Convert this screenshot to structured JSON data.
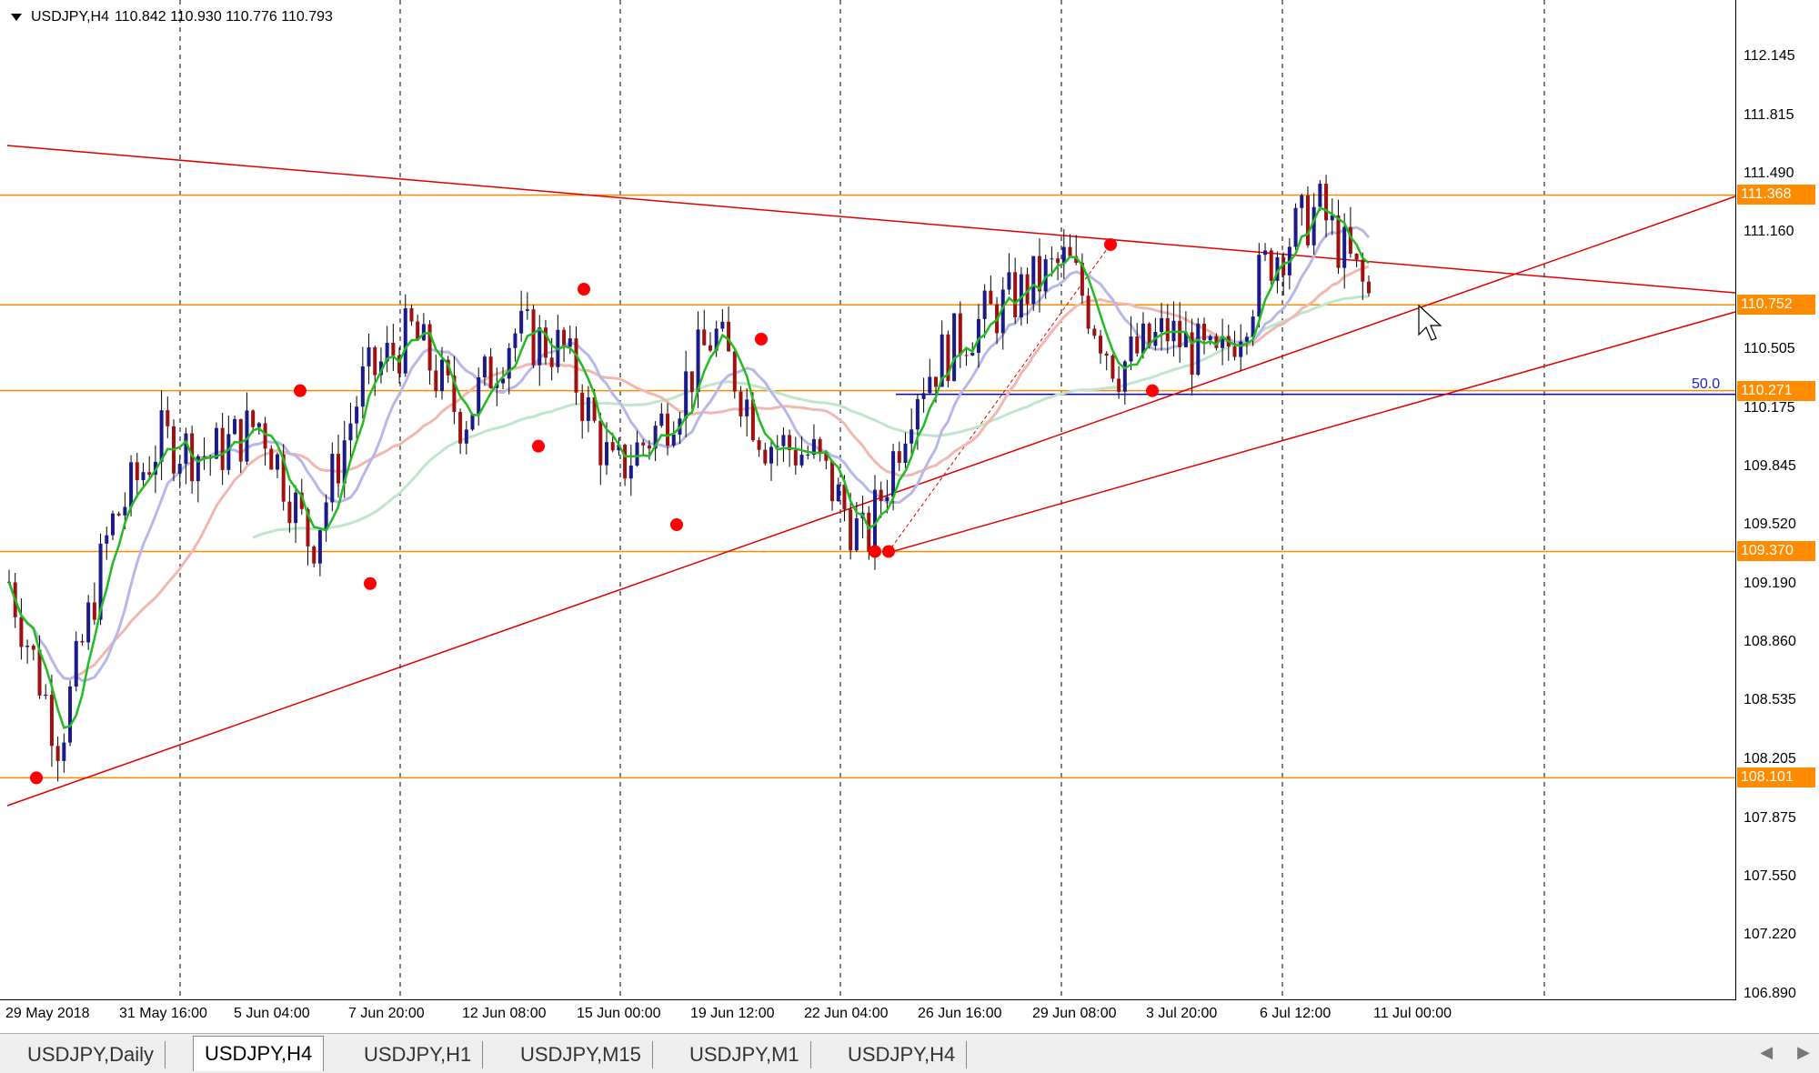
{
  "chart_header": {
    "symbol": "USDJPY,H4",
    "ohlc": "110.842 110.930 110.776 110.793"
  },
  "price_axis": {
    "ticks": [
      "112.145",
      "111.815",
      "111.490",
      "111.160",
      "110.505",
      "110.175",
      "109.845",
      "109.520",
      "109.190",
      "108.860",
      "108.535",
      "108.205",
      "107.875",
      "107.550",
      "107.220",
      "106.890"
    ],
    "horizontal_levels": [
      "111.368",
      "110.752",
      "110.271",
      "109.370",
      "108.101"
    ]
  },
  "time_axis": {
    "labels": [
      "29 May 2018",
      "31 May 16:00",
      "5 Jun 04:00",
      "7 Jun 20:00",
      "12 Jun 08:00",
      "15 Jun 00:00",
      "19 Jun 12:00",
      "22 Jun 04:00",
      "26 Jun 16:00",
      "29 Jun 08:00",
      "3 Jul 20:00",
      "6 Jul 12:00",
      "11 Jul 00:00"
    ]
  },
  "fib_label": "50.0",
  "tabs": [
    "USDJPY,Daily",
    "USDJPY,H4",
    "USDJPY,H1",
    "USDJPY,M15",
    "USDJPY,M1",
    "USDJPY,H4"
  ],
  "active_tab_index": 1,
  "colors": {
    "bull_candle": "#1a1a8a",
    "bear_candle": "#a01010",
    "level_line": "#ff8c00",
    "level_label_bg": "#ff8c00",
    "trend_line": "#e00000",
    "fib_line": "#0000cc",
    "ma_fast": "#22bb22",
    "ma_mid": "#b8b8e8",
    "ma_slow": "#f0b8b0",
    "ma_long": "#bfe6cc",
    "pivot_marker": "#ff0000"
  },
  "chart_data": {
    "type": "candlestick",
    "symbol": "USDJPY",
    "timeframe": "H4",
    "ylim": [
      106.89,
      112.3
    ],
    "horizontal_levels": [
      111.368,
      110.752,
      110.271,
      109.37,
      108.101
    ],
    "fib_level": {
      "label": "50.0",
      "price": 110.271
    },
    "close_path": [
      {
        "t": "29 May 2018",
        "close": 109.2
      },
      {
        "t": "30 May",
        "close": 108.3
      },
      {
        "t": "31 May 16:00",
        "close": 109.5
      },
      {
        "t": "4 Jun",
        "close": 110.0
      },
      {
        "t": "5 Jun 04:00",
        "close": 109.9
      },
      {
        "t": "6 Jun",
        "close": 110.1
      },
      {
        "t": "7 Jun 20:00",
        "close": 109.4
      },
      {
        "t": "8 Jun",
        "close": 110.3
      },
      {
        "t": "12 Jun 08:00",
        "close": 110.6
      },
      {
        "t": "13 Jun",
        "close": 110.1
      },
      {
        "t": "14 Jun",
        "close": 110.6
      },
      {
        "t": "15 Jun 00:00",
        "close": 110.5
      },
      {
        "t": "18 Jun",
        "close": 109.8
      },
      {
        "t": "19 Jun 12:00",
        "close": 110.1
      },
      {
        "t": "20 Jun",
        "close": 110.6
      },
      {
        "t": "21 Jun",
        "close": 110.0
      },
      {
        "t": "22 Jun 04:00",
        "close": 109.9
      },
      {
        "t": "25 Jun",
        "close": 109.4
      },
      {
        "t": "26 Jun 16:00",
        "close": 110.3
      },
      {
        "t": "28 Jun",
        "close": 110.6
      },
      {
        "t": "29 Jun 08:00",
        "close": 110.8
      },
      {
        "t": "2 Jul",
        "close": 111.0
      },
      {
        "t": "3 Jul 20:00",
        "close": 110.4
      },
      {
        "t": "5 Jul",
        "close": 110.6
      },
      {
        "t": "6 Jul 12:00",
        "close": 110.4
      },
      {
        "t": "9 Jul",
        "close": 111.0
      },
      {
        "t": "10 Jul",
        "close": 111.3
      },
      {
        "t": "11 Jul 00:00",
        "close": 110.793
      }
    ]
  }
}
